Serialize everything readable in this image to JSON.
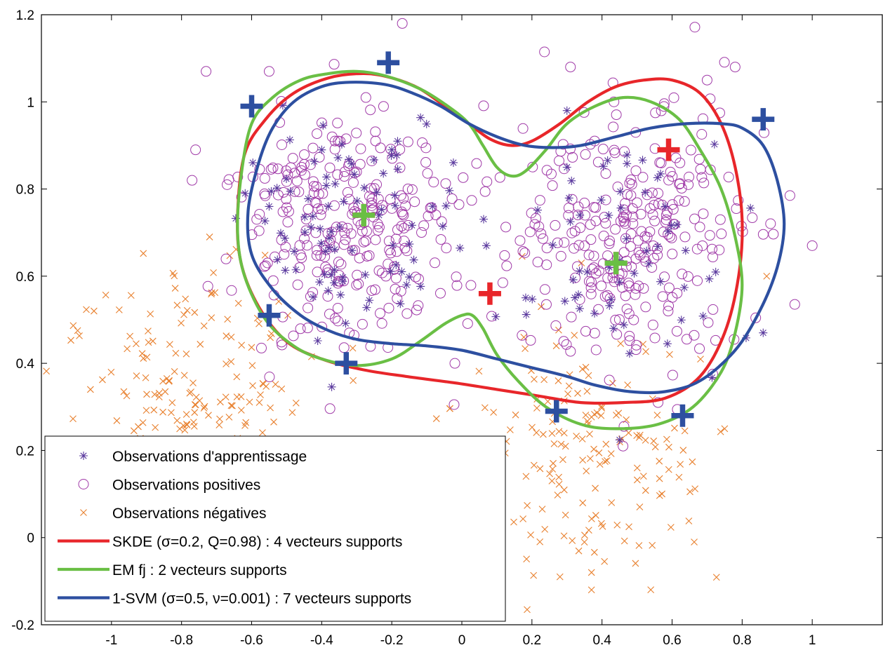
{
  "chart_data": {
    "type": "scatter",
    "title": "",
    "xlabel": "",
    "ylabel": "",
    "xlim": [
      -1.2,
      1.2
    ],
    "ylim": [
      -0.2,
      1.2
    ],
    "xticks": [
      -1,
      -0.8,
      -0.6,
      -0.4,
      -0.2,
      0,
      0.2,
      0.4,
      0.6,
      0.8,
      1
    ],
    "yticks": [
      -0.2,
      0,
      0.2,
      0.4,
      0.6,
      0.8,
      1,
      1.2
    ],
    "grid": false,
    "legend_position": "bottom-left",
    "colors": {
      "training": "#5b3a9e",
      "positive": "#a03aa8",
      "negative": "#e8802e",
      "skde": "#e8262a",
      "em": "#6abf45",
      "svm": "#2d4fa0"
    },
    "scatter_series": [
      {
        "key": "training",
        "name": "Observations d'apprentissage",
        "marker": "asterisk",
        "cloud": {
          "count": 150,
          "seed": 11,
          "clusters": [
            {
              "cx": -0.33,
              "cy": 0.72,
              "sx": 0.14,
              "sy": 0.12,
              "w": 0.5
            },
            {
              "cx": 0.45,
              "cy": 0.64,
              "sx": 0.16,
              "sy": 0.14,
              "w": 0.5
            }
          ]
        },
        "points": [
          [
            -0.55,
            0.76
          ],
          [
            -0.2,
            0.89
          ],
          [
            0.3,
            0.98
          ],
          [
            0.86,
            0.47
          ],
          [
            0.07,
            0.67
          ],
          [
            0.58,
            0.76
          ],
          [
            0.3,
            0.85
          ],
          [
            -0.4,
            0.89
          ]
        ]
      },
      {
        "key": "positive",
        "name": "Observations positives",
        "marker": "circle",
        "cloud": {
          "count": 560,
          "seed": 23,
          "clusters": [
            {
              "cx": -0.32,
              "cy": 0.72,
              "sx": 0.15,
              "sy": 0.13,
              "w": 0.5
            },
            {
              "cx": 0.45,
              "cy": 0.68,
              "sx": 0.17,
              "sy": 0.15,
              "w": 0.5
            }
          ]
        },
        "points": [
          [
            -0.17,
            1.18
          ],
          [
            -0.73,
            1.07
          ],
          [
            -0.55,
            1.07
          ],
          [
            -0.76,
            0.89
          ],
          [
            -0.77,
            0.82
          ],
          [
            1.0,
            0.67
          ],
          [
            0.78,
            1.08
          ],
          [
            0.31,
            1.08
          ],
          [
            0.7,
            1.05
          ],
          [
            -0.67,
            0.81
          ],
          [
            -0.02,
            0.4
          ],
          [
            0.46,
            0.21
          ],
          [
            0.56,
            0.31
          ]
        ]
      },
      {
        "key": "negative",
        "name": "Observations négatives",
        "marker": "x",
        "cloud": {
          "count": 360,
          "seed": 37,
          "clusters": [
            {
              "cx": -0.78,
              "cy": 0.32,
              "sx": 0.17,
              "sy": 0.14,
              "w": 0.55
            },
            {
              "cx": 0.36,
              "cy": 0.18,
              "sx": 0.16,
              "sy": 0.15,
              "w": 0.45
            }
          ]
        },
        "points": [
          [
            -1.05,
            0.52
          ],
          [
            -1.06,
            0.34
          ],
          [
            -0.72,
            0.69
          ],
          [
            0.37,
            -0.12
          ],
          [
            0.28,
            -0.09
          ],
          [
            0.37,
            -0.08
          ],
          [
            0.75,
            0.25
          ],
          [
            0.87,
            0.6
          ]
        ]
      }
    ],
    "curve_series": [
      {
        "key": "skde",
        "name": "SKDE (σ=0.2, Q=0.98) : 4 vecteurs supports",
        "points": [
          [
            -0.62,
            0.88
          ],
          [
            -0.56,
            0.96
          ],
          [
            -0.48,
            1.02
          ],
          [
            -0.38,
            1.055
          ],
          [
            -0.28,
            1.065
          ],
          [
            -0.2,
            1.055
          ],
          [
            -0.12,
            1.03
          ],
          [
            -0.04,
            0.985
          ],
          [
            0.02,
            0.95
          ],
          [
            0.08,
            0.915
          ],
          [
            0.14,
            0.9
          ],
          [
            0.2,
            0.91
          ],
          [
            0.28,
            0.95
          ],
          [
            0.36,
            1.0
          ],
          [
            0.44,
            1.035
          ],
          [
            0.52,
            1.05
          ],
          [
            0.6,
            1.05
          ],
          [
            0.68,
            1.02
          ],
          [
            0.74,
            0.95
          ],
          [
            0.78,
            0.85
          ],
          [
            0.8,
            0.73
          ],
          [
            0.79,
            0.6
          ],
          [
            0.75,
            0.47
          ],
          [
            0.68,
            0.37
          ],
          [
            0.58,
            0.32
          ],
          [
            0.46,
            0.31
          ],
          [
            0.34,
            0.31
          ],
          [
            0.22,
            0.325
          ],
          [
            0.1,
            0.34
          ],
          [
            -0.02,
            0.355
          ],
          [
            -0.16,
            0.37
          ],
          [
            -0.28,
            0.385
          ],
          [
            -0.4,
            0.41
          ],
          [
            -0.5,
            0.45
          ],
          [
            -0.58,
            0.53
          ],
          [
            -0.63,
            0.63
          ],
          [
            -0.64,
            0.74
          ],
          [
            -0.62,
            0.88
          ]
        ]
      },
      {
        "key": "em",
        "name": "EM fj : 2 vecteurs supports",
        "points": [
          [
            -0.6,
            0.95
          ],
          [
            -0.54,
            1.01
          ],
          [
            -0.46,
            1.05
          ],
          [
            -0.38,
            1.065
          ],
          [
            -0.3,
            1.07
          ],
          [
            -0.22,
            1.06
          ],
          [
            -0.12,
            1.03
          ],
          [
            -0.04,
            0.99
          ],
          [
            0.02,
            0.95
          ],
          [
            0.06,
            0.9
          ],
          [
            0.1,
            0.85
          ],
          [
            0.14,
            0.83
          ],
          [
            0.18,
            0.84
          ],
          [
            0.24,
            0.89
          ],
          [
            0.3,
            0.95
          ],
          [
            0.38,
            0.99
          ],
          [
            0.46,
            1.01
          ],
          [
            0.54,
            1.0
          ],
          [
            0.62,
            0.96
          ],
          [
            0.68,
            0.89
          ],
          [
            0.74,
            0.8
          ],
          [
            0.78,
            0.69
          ],
          [
            0.8,
            0.58
          ],
          [
            0.78,
            0.47
          ],
          [
            0.74,
            0.38
          ],
          [
            0.66,
            0.3
          ],
          [
            0.56,
            0.26
          ],
          [
            0.44,
            0.25
          ],
          [
            0.34,
            0.26
          ],
          [
            0.24,
            0.3
          ],
          [
            0.16,
            0.36
          ],
          [
            0.1,
            0.42
          ],
          [
            0.06,
            0.48
          ],
          [
            0.03,
            0.51
          ],
          [
            0.0,
            0.51
          ],
          [
            -0.05,
            0.49
          ],
          [
            -0.12,
            0.45
          ],
          [
            -0.2,
            0.41
          ],
          [
            -0.3,
            0.395
          ],
          [
            -0.4,
            0.41
          ],
          [
            -0.48,
            0.44
          ],
          [
            -0.56,
            0.5
          ],
          [
            -0.62,
            0.6
          ],
          [
            -0.64,
            0.7
          ],
          [
            -0.63,
            0.83
          ],
          [
            -0.6,
            0.95
          ]
        ]
      },
      {
        "key": "svm",
        "name": "1-SVM (σ=0.5, ν=0.001) : 7 vecteurs supports",
        "points": [
          [
            -0.58,
            0.86
          ],
          [
            -0.54,
            0.94
          ],
          [
            -0.48,
            1.0
          ],
          [
            -0.4,
            1.035
          ],
          [
            -0.32,
            1.045
          ],
          [
            -0.22,
            1.04
          ],
          [
            -0.14,
            1.02
          ],
          [
            -0.06,
            0.99
          ],
          [
            0.02,
            0.95
          ],
          [
            0.1,
            0.92
          ],
          [
            0.18,
            0.9
          ],
          [
            0.26,
            0.895
          ],
          [
            0.34,
            0.9
          ],
          [
            0.44,
            0.92
          ],
          [
            0.54,
            0.94
          ],
          [
            0.64,
            0.95
          ],
          [
            0.74,
            0.95
          ],
          [
            0.8,
            0.94
          ],
          [
            0.86,
            0.9
          ],
          [
            0.9,
            0.82
          ],
          [
            0.92,
            0.72
          ],
          [
            0.9,
            0.62
          ],
          [
            0.85,
            0.52
          ],
          [
            0.78,
            0.43
          ],
          [
            0.68,
            0.36
          ],
          [
            0.58,
            0.335
          ],
          [
            0.48,
            0.335
          ],
          [
            0.38,
            0.35
          ],
          [
            0.3,
            0.37
          ],
          [
            0.2,
            0.39
          ],
          [
            0.1,
            0.41
          ],
          [
            0.0,
            0.43
          ],
          [
            -0.1,
            0.44
          ],
          [
            -0.2,
            0.445
          ],
          [
            -0.3,
            0.455
          ],
          [
            -0.38,
            0.475
          ],
          [
            -0.46,
            0.51
          ],
          [
            -0.54,
            0.57
          ],
          [
            -0.6,
            0.65
          ],
          [
            -0.61,
            0.75
          ],
          [
            -0.58,
            0.86
          ]
        ]
      }
    ],
    "support_vectors": [
      {
        "key": "svm",
        "points": [
          [
            -0.6,
            0.99
          ],
          [
            -0.21,
            1.09
          ],
          [
            0.86,
            0.96
          ],
          [
            -0.55,
            0.51
          ],
          [
            -0.33,
            0.4
          ],
          [
            0.27,
            0.29
          ],
          [
            0.63,
            0.28
          ]
        ]
      },
      {
        "key": "skde",
        "points": [
          [
            0.59,
            0.89
          ],
          [
            0.08,
            0.56
          ],
          [
            -0.28,
            0.74
          ],
          [
            0.44,
            0.63
          ]
        ]
      },
      {
        "key": "em",
        "points": [
          [
            -0.28,
            0.74
          ],
          [
            0.44,
            0.63
          ]
        ]
      }
    ]
  }
}
